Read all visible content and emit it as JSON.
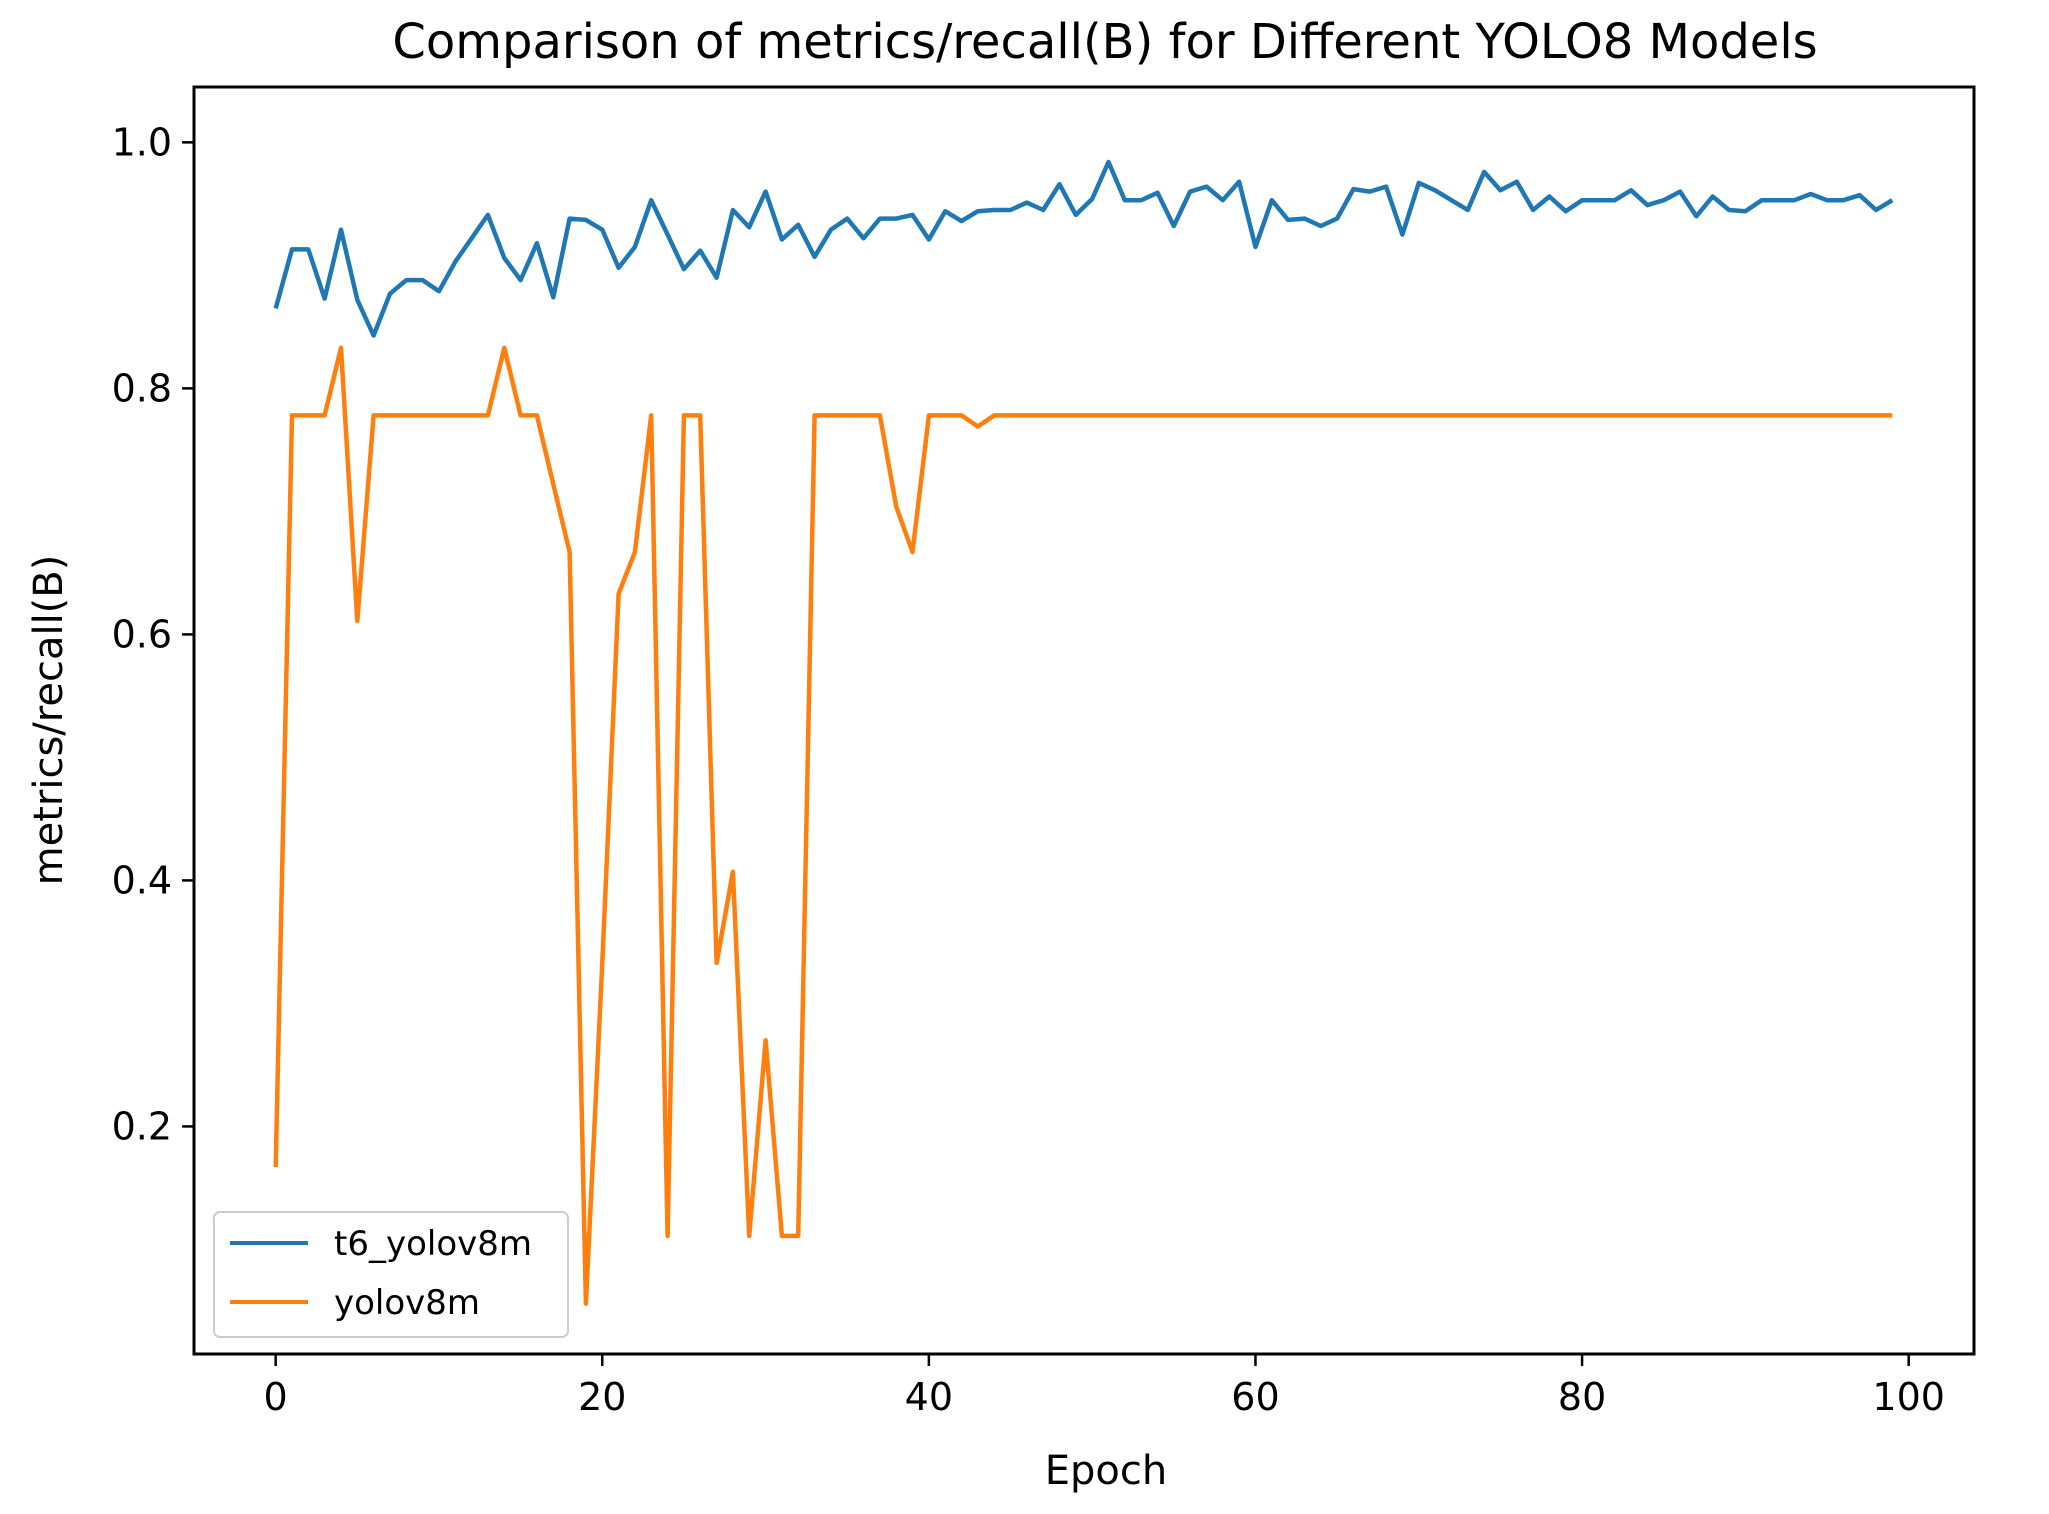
{
  "chart_data": {
    "type": "line",
    "title": "Comparison of metrics/recall(B) for Different YOLO8 Models",
    "xlabel": "Epoch",
    "ylabel": "metrics/recall(B)",
    "xlim": [
      -5,
      104
    ],
    "ylim": [
      0.015,
      1.045
    ],
    "xticks": [
      0,
      20,
      40,
      60,
      80,
      100
    ],
    "xtick_labels": [
      "0",
      "20",
      "40",
      "60",
      "80",
      "100"
    ],
    "yticks": [
      0.2,
      0.4,
      0.6,
      0.8,
      1.0
    ],
    "ytick_labels": [
      "0.2",
      "0.4",
      "0.6",
      "0.8",
      "1.0"
    ],
    "grid": false,
    "legend_position": "lower-left",
    "series": [
      {
        "name": "t6_yolov8m",
        "color": "#1f77b4",
        "values": [
          0.865,
          0.913,
          0.913,
          0.873,
          0.929,
          0.872,
          0.843,
          0.877,
          0.888,
          0.888,
          0.879,
          0.903,
          0.922,
          0.941,
          0.906,
          0.888,
          0.918,
          0.874,
          0.938,
          0.937,
          0.929,
          0.898,
          0.915,
          0.953,
          0.925,
          0.897,
          0.912,
          0.89,
          0.945,
          0.931,
          0.96,
          0.921,
          0.933,
          0.907,
          0.929,
          0.938,
          0.922,
          0.938,
          0.938,
          0.941,
          0.921,
          0.944,
          0.936,
          0.944,
          0.945,
          0.945,
          0.951,
          0.945,
          0.966,
          0.941,
          0.954,
          0.984,
          0.953,
          0.953,
          0.959,
          0.932,
          0.96,
          0.964,
          0.953,
          0.968,
          0.915,
          0.953,
          0.937,
          0.938,
          0.932,
          0.938,
          0.962,
          0.96,
          0.964,
          0.925,
          0.967,
          0.961,
          0.953,
          0.945,
          0.976,
          0.961,
          0.968,
          0.945,
          0.956,
          0.944,
          0.953,
          0.953,
          0.953,
          0.961,
          0.949,
          0.953,
          0.96,
          0.94,
          0.956,
          0.945,
          0.944,
          0.953,
          0.953,
          0.953,
          0.958,
          0.953,
          0.953,
          0.957,
          0.945,
          0.953
        ]
      },
      {
        "name": "yolov8m",
        "color": "#ff7f0e",
        "values": [
          0.167,
          0.778,
          0.778,
          0.778,
          0.833,
          0.611,
          0.778,
          0.778,
          0.778,
          0.778,
          0.778,
          0.778,
          0.778,
          0.778,
          0.833,
          0.778,
          0.778,
          0.722,
          0.667,
          0.056,
          0.333,
          0.633,
          0.667,
          0.778,
          0.111,
          0.778,
          0.778,
          0.333,
          0.407,
          0.111,
          0.27,
          0.111,
          0.111,
          0.778,
          0.778,
          0.778,
          0.778,
          0.778,
          0.704,
          0.667,
          0.778,
          0.778,
          0.778,
          0.769,
          0.778,
          0.778,
          0.778,
          0.778,
          0.778,
          0.778,
          0.778,
          0.778,
          0.778,
          0.778,
          0.778,
          0.778,
          0.778,
          0.778,
          0.778,
          0.778,
          0.778,
          0.778,
          0.778,
          0.778,
          0.778,
          0.778,
          0.778,
          0.778,
          0.778,
          0.778,
          0.778,
          0.778,
          0.778,
          0.778,
          0.778,
          0.778,
          0.778,
          0.778,
          0.778,
          0.778,
          0.778,
          0.778,
          0.778,
          0.778,
          0.778,
          0.778,
          0.778,
          0.778,
          0.778,
          0.778,
          0.778,
          0.778,
          0.778,
          0.778,
          0.778,
          0.778,
          0.778,
          0.778,
          0.778,
          0.778
        ]
      }
    ]
  }
}
